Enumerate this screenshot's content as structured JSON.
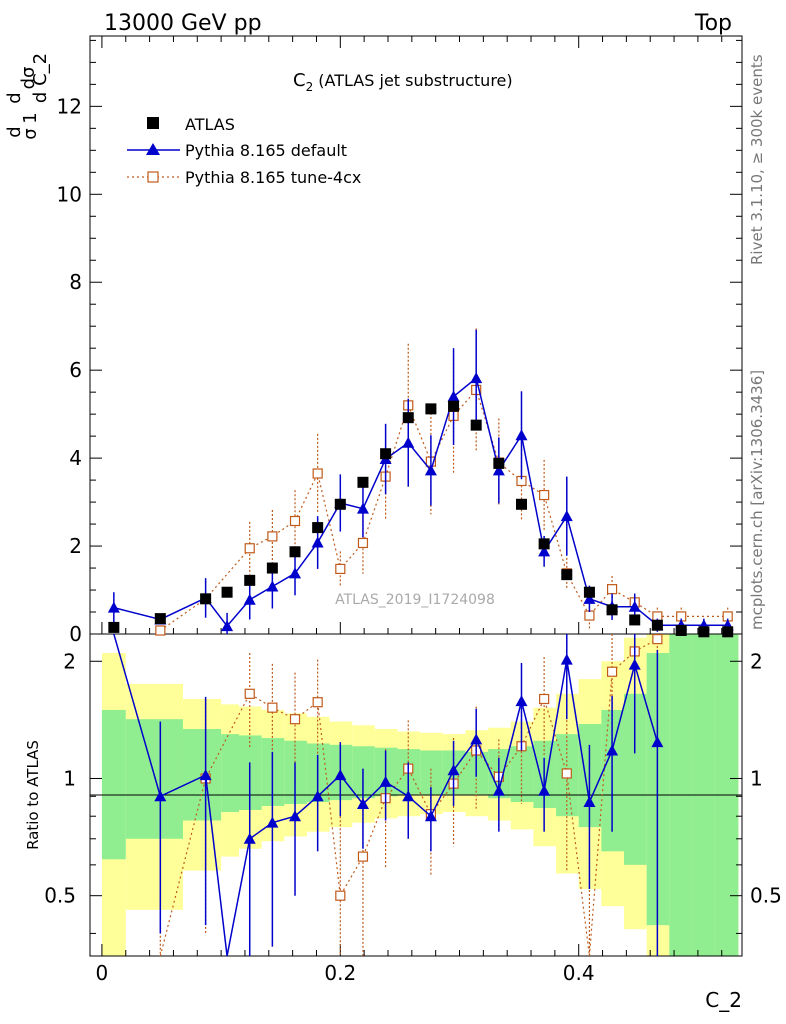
{
  "header": {
    "left": "13000 GeV pp",
    "right": "Top"
  },
  "side_labels": {
    "rivet": "Rivet 3.1.10, ≥ 300k events",
    "mcplots": "mcplots.cern.ch [arXiv:1306.3436]"
  },
  "chart_data": {
    "type": "scatter",
    "title_main": "C",
    "title_sub": "2",
    "title_rest": " (ATLAS jet substructure)",
    "watermark": "ATLAS_2019_I1724098",
    "xlabel": "C_2",
    "ylabel_main": "1/σ dσ/dC_2",
    "ylabel_ratio": "Ratio to ATLAS",
    "xlim": [
      -0.01,
      0.537
    ],
    "ylim_main": [
      0,
      13.6
    ],
    "ylim_ratio": [
      0.35,
      2.35
    ],
    "x_ticks": [
      "0",
      "0.2",
      "0.4"
    ],
    "y_ticks_main": [
      "0",
      "2",
      "4",
      "6",
      "8",
      "10",
      "12"
    ],
    "y_ticks_ratio": [
      "0.5",
      "1",
      "2"
    ],
    "legend": [
      {
        "label": "ATLAS",
        "color": "#000000",
        "marker": "square"
      },
      {
        "label": "Pythia 8.165 default",
        "color": "#0000cc",
        "marker": "triangle"
      },
      {
        "label": "Pythia 8.165 tune-4cx",
        "color": "#c05a1a",
        "marker": "open-square"
      }
    ],
    "x": [
      0.01,
      0.049,
      0.087,
      0.105,
      0.124,
      0.143,
      0.162,
      0.181,
      0.2,
      0.219,
      0.238,
      0.257,
      0.276,
      0.295,
      0.314,
      0.333,
      0.352,
      0.371,
      0.39,
      0.409,
      0.428,
      0.447,
      0.466,
      0.486,
      0.505,
      0.525
    ],
    "atlas": [
      0.15,
      0.35,
      0.8,
      0.95,
      1.22,
      1.5,
      1.87,
      2.42,
      2.95,
      3.45,
      4.1,
      4.92,
      5.12,
      5.18,
      4.75,
      3.88,
      2.95,
      2.05,
      1.35,
      0.95,
      0.55,
      0.32,
      0.2,
      0.08,
      0.05,
      0.05
    ],
    "default": [
      0.6,
      0.33,
      0.82,
      0.18,
      0.78,
      1.08,
      1.38,
      2.08,
      2.98,
      2.85,
      3.98,
      4.35,
      3.72,
      5.4,
      5.82,
      3.72,
      4.52,
      1.88,
      2.68,
      0.8,
      0.62,
      0.62,
      0.2,
      0.2,
      0.2,
      0.2
    ],
    "default_err": [
      0.35,
      0.1,
      0.45,
      0.3,
      0.45,
      0.5,
      0.5,
      0.6,
      0.65,
      0.65,
      0.8,
      1.0,
      0.8,
      1.1,
      1.1,
      0.75,
      1.0,
      0.35,
      0.9,
      0.3,
      0.3,
      0.3,
      0.15,
      0.15,
      0.15,
      0.15
    ],
    "tune": [
      null,
      0.08,
      0.8,
      null,
      1.95,
      2.22,
      2.57,
      3.65,
      1.48,
      2.07,
      3.58,
      5.2,
      3.92,
      4.96,
      5.55,
      3.9,
      3.48,
      3.16,
      1.38,
      0.42,
      1.02,
      0.72,
      0.4,
      0.4,
      null,
      0.4
    ],
    "tune_err": [
      0,
      0.1,
      0.4,
      0,
      0.6,
      0.6,
      0.7,
      0.9,
      0.4,
      0.7,
      1.0,
      1.4,
      1.2,
      1.3,
      1.4,
      1.0,
      0.9,
      0.8,
      0.35,
      0.3,
      0.3,
      0.2,
      0.2,
      0.2,
      0,
      0.2
    ],
    "ratio_default": [
      3.2,
      0.9,
      1.02,
      0.2,
      0.7,
      0.77,
      0.8,
      0.9,
      1.02,
      0.86,
      0.98,
      0.9,
      0.8,
      1.05,
      1.26,
      0.93,
      1.58,
      0.93,
      2.02,
      0.87,
      1.18,
      1.96,
      1.24,
      null,
      null,
      null
    ],
    "ratio_default_err": [
      0,
      0.5,
      0.6,
      0,
      0.4,
      0.4,
      0.3,
      0.25,
      0.22,
      0.2,
      0.2,
      0.2,
      0.15,
      0.2,
      0.25,
      0.2,
      0.4,
      0.2,
      0.6,
      0.35,
      0.45,
      0.8,
      0.9,
      0,
      0,
      0
    ],
    "ratio_tune": [
      null,
      0.2,
      1.0,
      null,
      1.65,
      1.52,
      1.42,
      1.57,
      0.5,
      0.63,
      0.89,
      1.06,
      0.81,
      0.97,
      1.18,
      1.01,
      1.21,
      1.6,
      1.03,
      0.34,
      1.88,
      2.12,
      2.28,
      null,
      null,
      null
    ],
    "ratio_tune_err": [
      0,
      0.3,
      0.6,
      0,
      0.45,
      0.45,
      0.45,
      0.45,
      0.3,
      0.35,
      0.3,
      0.35,
      0.25,
      0.3,
      0.35,
      0.25,
      0.35,
      0.45,
      0.45,
      0.3,
      0.7,
      0.6,
      0.5,
      0,
      0,
      0
    ],
    "band_edges": [
      0,
      0.02,
      0.068,
      0.1,
      0.115,
      0.134,
      0.153,
      0.172,
      0.191,
      0.21,
      0.229,
      0.248,
      0.267,
      0.286,
      0.305,
      0.324,
      0.343,
      0.362,
      0.381,
      0.4,
      0.419,
      0.438,
      0.457,
      0.476,
      0.495,
      0.514,
      0.534
    ],
    "band_green": [
      [
        0.62,
        1.5
      ],
      [
        0.7,
        1.42
      ],
      [
        0.78,
        1.34
      ],
      [
        0.82,
        1.3
      ],
      [
        0.83,
        1.29
      ],
      [
        0.85,
        1.27
      ],
      [
        0.86,
        1.25
      ],
      [
        0.87,
        1.23
      ],
      [
        0.88,
        1.22
      ],
      [
        0.89,
        1.21
      ],
      [
        0.9,
        1.2
      ],
      [
        0.91,
        1.19
      ],
      [
        0.91,
        1.18
      ],
      [
        0.91,
        1.18
      ],
      [
        0.91,
        1.17
      ],
      [
        0.89,
        1.19
      ],
      [
        0.87,
        1.21
      ],
      [
        0.84,
        1.25
      ],
      [
        0.8,
        1.3
      ],
      [
        0.75,
        1.38
      ],
      [
        0.65,
        1.5
      ],
      [
        0.6,
        1.65
      ],
      [
        0.42,
        2.1
      ],
      [
        0.35,
        2.35
      ],
      [
        0.35,
        2.35
      ],
      [
        0.35,
        2.35
      ]
    ],
    "band_yellow": [
      [
        0.35,
        2.1
      ],
      [
        0.46,
        1.75
      ],
      [
        0.58,
        1.6
      ],
      [
        0.63,
        1.55
      ],
      [
        0.66,
        1.53
      ],
      [
        0.69,
        1.5
      ],
      [
        0.71,
        1.47
      ],
      [
        0.73,
        1.44
      ],
      [
        0.75,
        1.4
      ],
      [
        0.77,
        1.37
      ],
      [
        0.79,
        1.34
      ],
      [
        0.8,
        1.32
      ],
      [
        0.81,
        1.31
      ],
      [
        0.82,
        1.3
      ],
      [
        0.8,
        1.33
      ],
      [
        0.78,
        1.35
      ],
      [
        0.74,
        1.4
      ],
      [
        0.67,
        1.52
      ],
      [
        0.57,
        1.65
      ],
      [
        0.52,
        1.8
      ],
      [
        0.47,
        2.0
      ],
      [
        0.41,
        2.3
      ],
      [
        0.35,
        2.35
      ],
      [
        0.35,
        2.35
      ],
      [
        0.35,
        2.35
      ],
      [
        0.35,
        2.35
      ]
    ]
  },
  "colors": {
    "default": "#0000cc",
    "tune": "#c05a1a",
    "green_band": "#90ee90",
    "yellow_band": "#ffff99"
  }
}
